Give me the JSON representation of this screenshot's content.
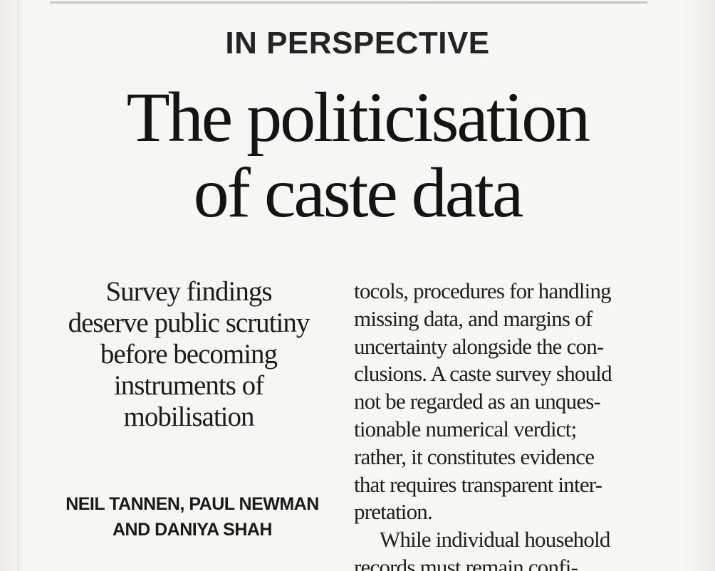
{
  "article": {
    "kicker": "IN PERSPECTIVE",
    "headline": {
      "lines": [
        "The politicisation",
        "of caste data"
      ]
    },
    "deck": {
      "lines": [
        "Survey findings",
        "deserve public scrutiny",
        "before becoming",
        "instruments of",
        "mobilisation"
      ]
    },
    "byline": {
      "lines": [
        "NEIL TANNEN, PAUL NEWMAN",
        "AND DANIYA SHAH"
      ]
    },
    "body": {
      "lines": [
        "tocols, procedures for handling",
        "missing data, and margins of",
        "uncertainty alongside the con-",
        "clusions. A caste survey should",
        "not be regarded as an unques-",
        "tionable numerical verdict;",
        "rather, it constitutes evidence",
        "that requires transparent inter-",
        "pretation.",
        "While individual household",
        "records must remain confi-"
      ]
    }
  }
}
